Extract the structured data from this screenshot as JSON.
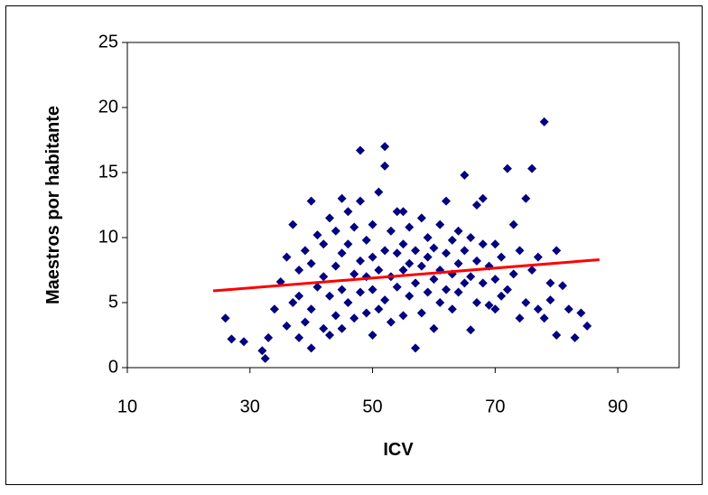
{
  "chart_data": {
    "type": "scatter",
    "xlabel": "ICV",
    "ylabel": "Maestros por habitante",
    "color": "#000080",
    "x": [
      26,
      27,
      29,
      32,
      32.5,
      33,
      34,
      35,
      36,
      36,
      37,
      37,
      38,
      38,
      38,
      39,
      39,
      40,
      40,
      40,
      40,
      41,
      41,
      42,
      42,
      42,
      43,
      43,
      43,
      44,
      44,
      44,
      45,
      45,
      45,
      45,
      46,
      46,
      46,
      47,
      47,
      47,
      48,
      48,
      48,
      48,
      49,
      49,
      49,
      50,
      50,
      50,
      50,
      51,
      51,
      51,
      52,
      52,
      52,
      52,
      53,
      53,
      53,
      54,
      54,
      54,
      55,
      55,
      55,
      55,
      56,
      56,
      56,
      57,
      57,
      57,
      58,
      58,
      58,
      59,
      59,
      59,
      60,
      60,
      60,
      61,
      61,
      61,
      62,
      62,
      62,
      63,
      63,
      63,
      64,
      64,
      64,
      65,
      65,
      65,
      66,
      66,
      66,
      67,
      67,
      67,
      68,
      68,
      68,
      69,
      69,
      70,
      70,
      70,
      71,
      71,
      72,
      72,
      73,
      73,
      74,
      74,
      75,
      75,
      76,
      76,
      77,
      77,
      78,
      78,
      79,
      79,
      80,
      80,
      81,
      82,
      83,
      84,
      85
    ],
    "values": [
      3.8,
      2.2,
      2.0,
      1.3,
      0.7,
      2.3,
      4.5,
      6.6,
      8.5,
      3.2,
      11,
      5.0,
      2.3,
      5.5,
      7.5,
      9.0,
      3.5,
      12.8,
      1.5,
      4.5,
      8.0,
      6.2,
      10.2,
      3.0,
      7.0,
      9.5,
      2.5,
      5.5,
      11.5,
      4.0,
      7.8,
      10.5,
      3.0,
      6.0,
      8.8,
      13.0,
      5.0,
      9.5,
      12.0,
      3.8,
      7.2,
      10.8,
      16.7,
      5.8,
      8.2,
      12.8,
      4.2,
      7.0,
      9.8,
      2.5,
      6.0,
      8.5,
      11.0,
      4.5,
      7.5,
      13.5,
      17.0,
      15.5,
      5.2,
      9.0,
      3.5,
      7.0,
      10.5,
      6.2,
      8.8,
      12.0,
      12.0,
      4.0,
      7.5,
      9.5,
      5.5,
      8.0,
      10.8,
      1.5,
      6.5,
      9.0,
      4.2,
      7.8,
      11.5,
      5.8,
      8.5,
      10.0,
      3.0,
      6.8,
      9.2,
      5.0,
      7.5,
      11.0,
      12.8,
      6.0,
      8.8,
      4.5,
      7.2,
      9.8,
      5.8,
      8.0,
      10.5,
      14.8,
      6.5,
      9.0,
      2.9,
      7.0,
      10.0,
      5.0,
      8.2,
      12.5,
      13.0,
      6.5,
      9.5,
      4.8,
      7.8,
      4.5,
      6.8,
      9.5,
      5.5,
      8.5,
      15.3,
      6.0,
      11.0,
      7.2,
      3.8,
      9.0,
      13.0,
      5.0,
      15.3,
      7.5,
      4.5,
      8.5,
      18.9,
      3.8,
      6.5,
      5.2,
      9.0,
      2.5,
      6.3,
      4.5,
      2.3,
      4.2,
      3.2
    ],
    "trendline": {
      "x": [
        24,
        87
      ],
      "values": [
        5.9,
        8.3
      ],
      "color": "#ff0000"
    },
    "xlim": [
      10,
      100
    ],
    "xticks": [
      10,
      30,
      50,
      70,
      90
    ],
    "ylim": [
      0,
      25
    ],
    "yticks": [
      0,
      5,
      10,
      15,
      20,
      25
    ]
  }
}
